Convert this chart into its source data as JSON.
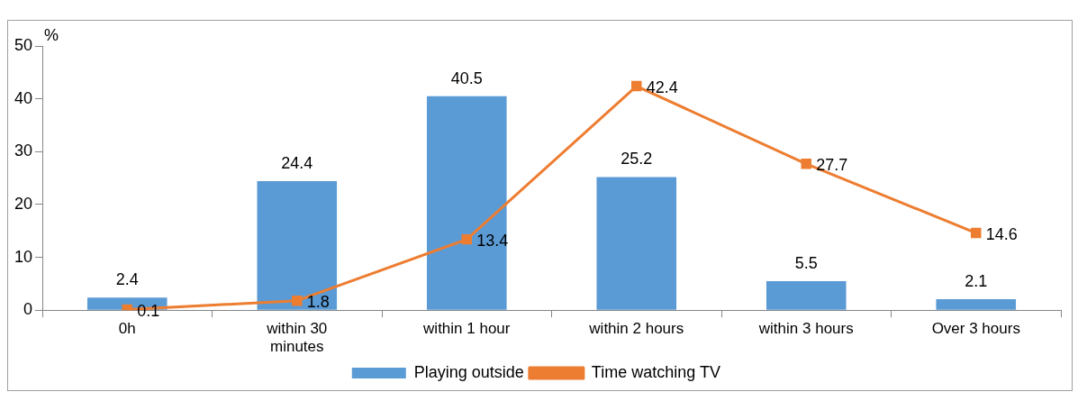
{
  "chart_data": {
    "type": "bar",
    "ylabel": "%",
    "categories": [
      "0h",
      "within 30 minutes",
      "within 1 hour",
      "within 2 hours",
      "within 3 hours",
      "Over 3 hours"
    ],
    "series": [
      {
        "name": "Playing outside",
        "color": "#5b9bd5",
        "values": [
          2.4,
          24.4,
          40.5,
          25.2,
          5.5,
          2.1
        ]
      },
      {
        "name": "Time watching TV",
        "type": "line",
        "color": "#ed7d31",
        "values": [
          0.1,
          1.8,
          13.4,
          42.4,
          27.7,
          14.6
        ],
        "marker": "square"
      }
    ],
    "ylim": [
      0,
      50
    ],
    "yticks": [
      0,
      10,
      20,
      30,
      40,
      50
    ],
    "grid": false,
    "legend": "bottom",
    "data_labels": true
  }
}
